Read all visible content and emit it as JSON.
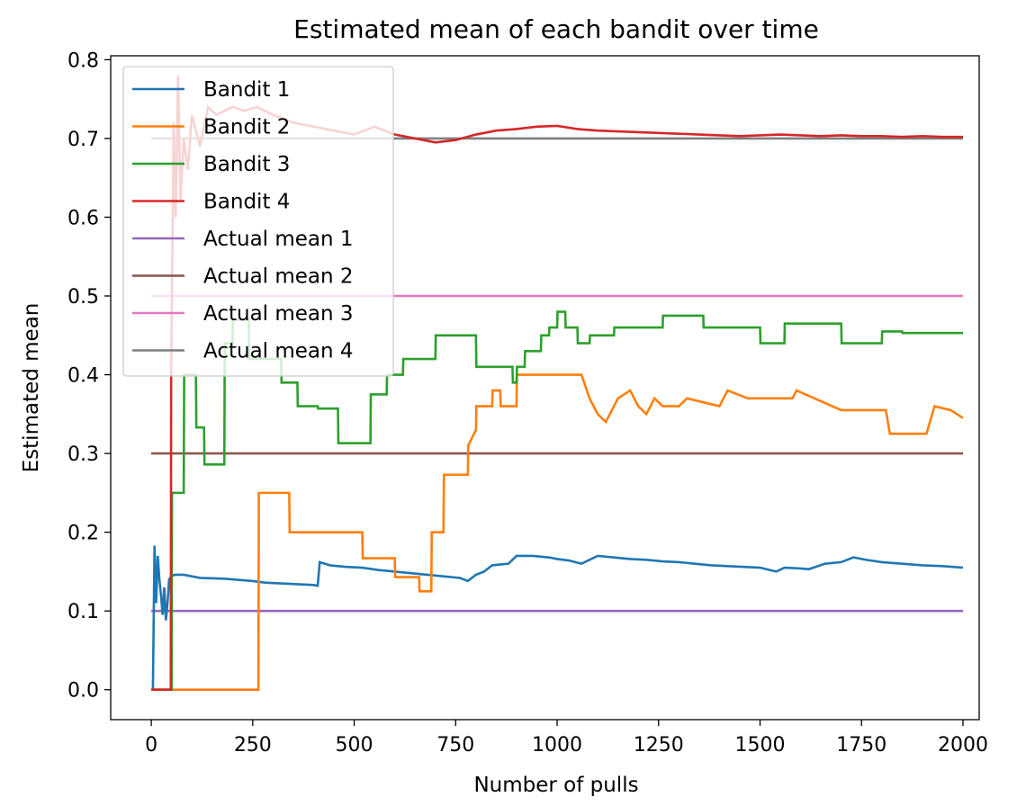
{
  "chart_data": {
    "type": "line",
    "title": "Estimated mean of each bandit over time",
    "xlabel": "Number of pulls",
    "ylabel": "Estimated mean",
    "xlim": [
      -100,
      2040
    ],
    "ylim": [
      -0.038,
      0.805
    ],
    "xticks": [
      0,
      250,
      500,
      750,
      1000,
      1250,
      1500,
      1750,
      2000
    ],
    "xtick_labels": [
      "0",
      "250",
      "500",
      "750",
      "1000",
      "1250",
      "1500",
      "1750",
      "2000"
    ],
    "yticks": [
      0.0,
      0.1,
      0.2,
      0.3,
      0.4,
      0.5,
      0.6,
      0.7,
      0.8
    ],
    "ytick_labels": [
      "0.0",
      "0.1",
      "0.2",
      "0.3",
      "0.4",
      "0.5",
      "0.6",
      "0.7",
      "0.8"
    ],
    "grid": false,
    "legend_position": "top-left",
    "series": [
      {
        "name": "Bandit 1",
        "color": "#1f77b4",
        "x": [
          0,
          4,
          8,
          12,
          16,
          20,
          24,
          28,
          32,
          36,
          40,
          44,
          50,
          60,
          80,
          120,
          180,
          250,
          280,
          320,
          360,
          400,
          410,
          415,
          440,
          480,
          520,
          560,
          600,
          640,
          680,
          720,
          760,
          780,
          800,
          820,
          840,
          880,
          900,
          940,
          980,
          1000,
          1030,
          1060,
          1100,
          1140,
          1180,
          1220,
          1260,
          1300,
          1340,
          1380,
          1420,
          1460,
          1500,
          1540,
          1560,
          1600,
          1620,
          1660,
          1700,
          1730,
          1760,
          1800,
          1850,
          1900,
          1950,
          2000
        ],
        "y": [
          0.0,
          0.0,
          0.183,
          0.11,
          0.17,
          0.14,
          0.12,
          0.095,
          0.13,
          0.088,
          0.11,
          0.14,
          0.145,
          0.146,
          0.146,
          0.142,
          0.141,
          0.138,
          0.136,
          0.135,
          0.134,
          0.133,
          0.132,
          0.162,
          0.158,
          0.156,
          0.155,
          0.152,
          0.15,
          0.148,
          0.146,
          0.144,
          0.142,
          0.138,
          0.146,
          0.15,
          0.158,
          0.16,
          0.17,
          0.17,
          0.168,
          0.166,
          0.164,
          0.16,
          0.17,
          0.168,
          0.166,
          0.165,
          0.163,
          0.162,
          0.16,
          0.158,
          0.157,
          0.156,
          0.155,
          0.15,
          0.155,
          0.154,
          0.153,
          0.16,
          0.162,
          0.168,
          0.165,
          0.162,
          0.16,
          0.158,
          0.157,
          0.155
        ]
      },
      {
        "name": "Bandit 2",
        "color": "#ff7f0e",
        "x": [
          0,
          264,
          265,
          340,
          341,
          520,
          521,
          600,
          601,
          660,
          661,
          690,
          691,
          720,
          721,
          780,
          781,
          800,
          801,
          840,
          841,
          860,
          861,
          900,
          901,
          1060,
          1080,
          1100,
          1120,
          1150,
          1180,
          1200,
          1220,
          1240,
          1260,
          1300,
          1320,
          1400,
          1420,
          1470,
          1480,
          1580,
          1590,
          1700,
          1810,
          1820,
          1910,
          1930,
          1970,
          2000
        ],
        "y": [
          0.0,
          0.0,
          0.25,
          0.25,
          0.2,
          0.2,
          0.167,
          0.167,
          0.143,
          0.143,
          0.125,
          0.125,
          0.2,
          0.2,
          0.273,
          0.273,
          0.31,
          0.33,
          0.36,
          0.36,
          0.38,
          0.38,
          0.36,
          0.36,
          0.4,
          0.4,
          0.37,
          0.35,
          0.34,
          0.37,
          0.38,
          0.36,
          0.35,
          0.37,
          0.36,
          0.36,
          0.37,
          0.36,
          0.38,
          0.37,
          0.37,
          0.37,
          0.38,
          0.355,
          0.355,
          0.325,
          0.325,
          0.36,
          0.355,
          0.345
        ]
      },
      {
        "name": "Bandit 3",
        "color": "#2ca02c",
        "x": [
          0,
          50,
          51,
          80,
          81,
          110,
          111,
          130,
          131,
          180,
          181,
          200,
          201,
          240,
          241,
          320,
          321,
          360,
          361,
          410,
          411,
          460,
          461,
          540,
          541,
          580,
          581,
          620,
          621,
          700,
          701,
          800,
          801,
          890,
          891,
          900,
          901,
          920,
          921,
          960,
          961,
          980,
          981,
          1000,
          1001,
          1020,
          1021,
          1050,
          1051,
          1080,
          1081,
          1140,
          1141,
          1200,
          1201,
          1260,
          1261,
          1360,
          1361,
          1500,
          1501,
          1560,
          1561,
          1700,
          1701,
          1800,
          1801,
          1850,
          1851,
          2000
        ],
        "y": [
          0.0,
          0.0,
          0.25,
          0.25,
          0.4,
          0.4,
          0.333,
          0.333,
          0.286,
          0.286,
          0.44,
          0.44,
          0.47,
          0.47,
          0.42,
          0.42,
          0.39,
          0.39,
          0.36,
          0.36,
          0.357,
          0.357,
          0.313,
          0.313,
          0.375,
          0.375,
          0.4,
          0.4,
          0.42,
          0.42,
          0.45,
          0.45,
          0.41,
          0.41,
          0.39,
          0.39,
          0.41,
          0.41,
          0.43,
          0.43,
          0.45,
          0.45,
          0.46,
          0.46,
          0.48,
          0.48,
          0.46,
          0.46,
          0.44,
          0.44,
          0.45,
          0.45,
          0.46,
          0.46,
          0.46,
          0.46,
          0.475,
          0.475,
          0.46,
          0.46,
          0.44,
          0.44,
          0.465,
          0.465,
          0.44,
          0.44,
          0.455,
          0.455,
          0.453,
          0.453
        ]
      },
      {
        "name": "Bandit 4",
        "color": "#d62728",
        "x": [
          0,
          48,
          49,
          55,
          60,
          66,
          72,
          80,
          90,
          100,
          120,
          140,
          160,
          180,
          200,
          230,
          260,
          300,
          350,
          400,
          450,
          500,
          550,
          600,
          650,
          700,
          750,
          800,
          850,
          900,
          950,
          1000,
          1050,
          1100,
          1150,
          1200,
          1250,
          1300,
          1350,
          1400,
          1450,
          1500,
          1550,
          1600,
          1650,
          1700,
          1750,
          1800,
          1850,
          1900,
          1950,
          2000
        ],
        "y": [
          0.0,
          0.0,
          0.4,
          0.72,
          0.6,
          0.78,
          0.62,
          0.7,
          0.66,
          0.73,
          0.69,
          0.74,
          0.73,
          0.735,
          0.74,
          0.735,
          0.74,
          0.73,
          0.72,
          0.715,
          0.71,
          0.705,
          0.715,
          0.705,
          0.7,
          0.695,
          0.698,
          0.705,
          0.71,
          0.712,
          0.715,
          0.716,
          0.712,
          0.71,
          0.709,
          0.708,
          0.707,
          0.706,
          0.705,
          0.704,
          0.703,
          0.704,
          0.705,
          0.704,
          0.703,
          0.704,
          0.703,
          0.703,
          0.702,
          0.703,
          0.702,
          0.702
        ]
      },
      {
        "name": "Actual mean 1",
        "color": "#9467bd",
        "x": [
          0,
          2000
        ],
        "y": [
          0.1,
          0.1
        ]
      },
      {
        "name": "Actual mean 2",
        "color": "#8c564b",
        "x": [
          0,
          2000
        ],
        "y": [
          0.3,
          0.3
        ]
      },
      {
        "name": "Actual mean 3",
        "color": "#e377c2",
        "x": [
          0,
          2000
        ],
        "y": [
          0.5,
          0.5
        ]
      },
      {
        "name": "Actual mean 4",
        "color": "#7f7f7f",
        "x": [
          0,
          2000
        ],
        "y": [
          0.7,
          0.7
        ]
      }
    ]
  }
}
